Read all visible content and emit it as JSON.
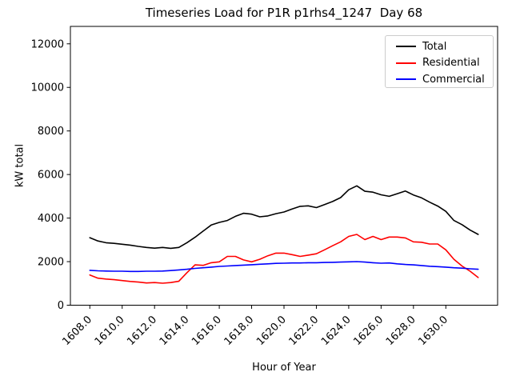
{
  "chart_data": {
    "type": "line",
    "title": "Timeseries Load for P1R p1rhs4_1247  Day 68",
    "xlabel": "Hour of Year",
    "ylabel": "kW total",
    "xlim": [
      1606.8,
      1633.2
    ],
    "ylim": [
      0,
      12800
    ],
    "grid": false,
    "xticks": [
      1608,
      1610,
      1612,
      1614,
      1616,
      1618,
      1620,
      1622,
      1624,
      1626,
      1628,
      1630
    ],
    "xtick_labels": [
      "1608.0",
      "1610.0",
      "1612.0",
      "1614.0",
      "1616.0",
      "1618.0",
      "1620.0",
      "1622.0",
      "1624.0",
      "1626.0",
      "1628.0",
      "1630.0"
    ],
    "yticks": [
      0,
      2000,
      4000,
      6000,
      8000,
      10000,
      12000
    ],
    "ytick_labels": [
      "0",
      "2000",
      "4000",
      "6000",
      "8000",
      "10000",
      "12000"
    ],
    "legend": {
      "position": "upper right",
      "entries": [
        "Total",
        "Residential",
        "Commercial"
      ]
    },
    "x": [
      1608,
      1608.5,
      1609,
      1609.5,
      1610,
      1610.5,
      1611,
      1611.5,
      1612,
      1612.5,
      1613,
      1613.5,
      1614,
      1614.5,
      1615,
      1615.5,
      1616,
      1616.5,
      1617,
      1617.5,
      1618,
      1618.5,
      1619,
      1619.5,
      1620,
      1620.5,
      1621,
      1621.5,
      1622,
      1622.5,
      1623,
      1623.5,
      1624,
      1624.5,
      1625,
      1625.5,
      1626,
      1626.5,
      1627,
      1627.5,
      1628,
      1628.5,
      1629,
      1629.5,
      1630,
      1630.5,
      1631,
      1631.5,
      1632
    ],
    "series": [
      {
        "name": "Total",
        "color": "#000000",
        "values": [
          3100,
          2950,
          2870,
          2840,
          2800,
          2760,
          2700,
          2650,
          2620,
          2650,
          2610,
          2650,
          2870,
          3120,
          3400,
          3680,
          3800,
          3890,
          4080,
          4220,
          4180,
          4060,
          4100,
          4200,
          4280,
          4420,
          4540,
          4560,
          4480,
          4620,
          4760,
          4940,
          5300,
          5480,
          5230,
          5190,
          5070,
          5000,
          5120,
          5240,
          5060,
          4930,
          4730,
          4550,
          4310,
          3890,
          3700,
          3450,
          3250
        ]
      },
      {
        "name": "Residential",
        "color": "#ff0000",
        "values": [
          1390,
          1240,
          1200,
          1170,
          1130,
          1090,
          1060,
          1020,
          1040,
          1010,
          1040,
          1100,
          1490,
          1850,
          1830,
          1950,
          1990,
          2240,
          2240,
          2080,
          1990,
          2110,
          2270,
          2390,
          2390,
          2320,
          2240,
          2300,
          2360,
          2540,
          2730,
          2910,
          3160,
          3250,
          3010,
          3160,
          3010,
          3130,
          3130,
          3090,
          2910,
          2890,
          2810,
          2810,
          2540,
          2110,
          1800,
          1560,
          1270
        ]
      },
      {
        "name": "Commercial",
        "color": "#0000ff",
        "values": [
          1600,
          1580,
          1570,
          1560,
          1560,
          1550,
          1550,
          1560,
          1560,
          1570,
          1590,
          1620,
          1650,
          1690,
          1720,
          1750,
          1780,
          1800,
          1820,
          1840,
          1860,
          1880,
          1900,
          1920,
          1930,
          1940,
          1940,
          1950,
          1950,
          1960,
          1970,
          1980,
          1990,
          2000,
          1980,
          1950,
          1930,
          1940,
          1900,
          1870,
          1850,
          1820,
          1790,
          1770,
          1750,
          1720,
          1700,
          1670,
          1650
        ]
      }
    ]
  }
}
